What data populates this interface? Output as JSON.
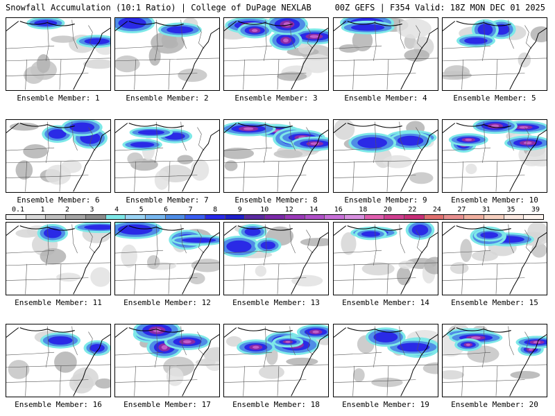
{
  "header": {
    "left": "Snowfall Accumulation (10:1 Ratio) | College of DuPage NEXLAB",
    "right": "00Z GEFS | F354 Valid: 18Z MON DEC 01 2025"
  },
  "colorbar": {
    "labels": [
      "0.1",
      "1",
      "2",
      "3",
      "4",
      "5",
      "6",
      "7",
      "8",
      "9",
      "10",
      "12",
      "14",
      "16",
      "18",
      "20",
      "22",
      "24",
      "27",
      "31",
      "35",
      "39"
    ],
    "colors": [
      "#f2f2f2",
      "#d9d9d9",
      "#bfbfbf",
      "#a6a6a6",
      "#8c8c8c",
      "#7ee8e8",
      "#9ad4f5",
      "#78b8f0",
      "#4f8de6",
      "#3a5ef0",
      "#2a2ae6",
      "#2020c8",
      "#5a2aa0",
      "#7a2aa8",
      "#9a3ab8",
      "#b050c8",
      "#c870d8",
      "#d890e0",
      "#e060b0",
      "#d04090",
      "#c83078",
      "#e07070",
      "#e89090",
      "#f0b0a0",
      "#f6d0c0",
      "#fbe8e0",
      "#fff5f0"
    ]
  },
  "panels": [
    {
      "label": "Ensemble Member: 1",
      "snow": "low"
    },
    {
      "label": "Ensemble Member: 2",
      "snow": "low"
    },
    {
      "label": "Ensemble Member: 3",
      "snow": "high"
    },
    {
      "label": "Ensemble Member: 4",
      "snow": "low"
    },
    {
      "label": "Ensemble Member: 5",
      "snow": "med"
    },
    {
      "label": "Ensemble Member: 6",
      "snow": "med"
    },
    {
      "label": "Ensemble Member: 7",
      "snow": "med"
    },
    {
      "label": "Ensemble Member: 8",
      "snow": "high"
    },
    {
      "label": "Ensemble Member: 9",
      "snow": "med"
    },
    {
      "label": "Ensemble Member: 10",
      "snow": "high"
    },
    {
      "label": "Ensemble Member: 11",
      "snow": "low"
    },
    {
      "label": "Ensemble Member: 12",
      "snow": "med"
    },
    {
      "label": "Ensemble Member: 13",
      "snow": "med"
    },
    {
      "label": "Ensemble Member: 14",
      "snow": "med"
    },
    {
      "label": "Ensemble Member: 15",
      "snow": "med"
    },
    {
      "label": "Ensemble Member: 16",
      "snow": "low"
    },
    {
      "label": "Ensemble Member: 17",
      "snow": "high"
    },
    {
      "label": "Ensemble Member: 18",
      "snow": "high"
    },
    {
      "label": "Ensemble Member: 19",
      "snow": "med"
    },
    {
      "label": "Ensemble Member: 20",
      "snow": "high"
    }
  ]
}
